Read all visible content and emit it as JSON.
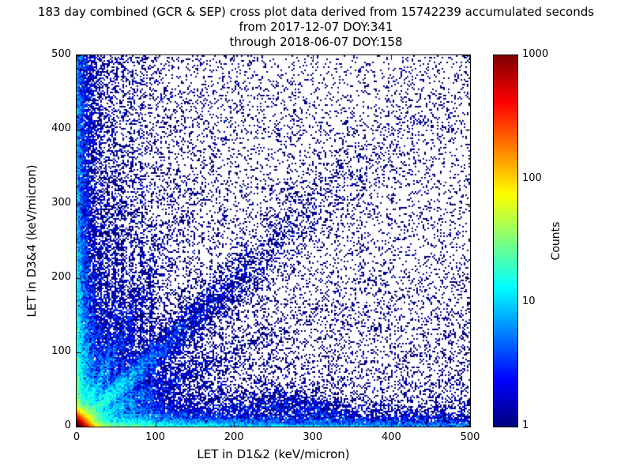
{
  "title": {
    "line1": "183 day combined (GCR & SEP) cross plot data derived from 15742239 accumulated seconds",
    "line2": "from 2017-12-07 DOY:341",
    "line3": "through 2018-06-07 DOY:158"
  },
  "period": {
    "days": "183",
    "accumulated_seconds": "15742239",
    "start": "2017-12-07 DOY:341",
    "end": "2018-06-07 DOY:158"
  },
  "chart_data": {
    "type": "heatmap",
    "title": "183 day combined (GCR & SEP) cross plot data derived from 15742239 accumulated seconds",
    "xlabel": "LET in D1&2 (keV/micron)",
    "ylabel": "LET in D3&4 (keV/micron)",
    "xlim": [
      0,
      500
    ],
    "ylim": [
      0,
      500
    ],
    "x_ticks": [
      0,
      100,
      200,
      300,
      400,
      500
    ],
    "y_ticks": [
      0,
      100,
      200,
      300,
      400,
      500
    ],
    "grid": false,
    "colorbar": {
      "label": "Counts",
      "scale": "log",
      "min": 1,
      "max": 1000,
      "ticks": [
        1,
        10,
        100,
        1000
      ],
      "colormap": "jet"
    },
    "description": "2D histogram (cross plot) of coincident LET in detectors D1&2 vs D3&4. Very hot (red/orange, ~1000 counts) core at the origin fading through yellow/green/cyan to a blue haze in the lower-left; a speckled blue correlation band along y~x out to ~(400,400); bright cyan/green stripes hugging the left and bottom axes; faint vertical streaks at low D1&2 LET (~15-95 keV/micron) reaching up to ~400; sparse single-count dark-blue speckle over the whole plane; small blue clumps near (255,22) and (310,14).",
    "density_model": [
      {
        "kind": "biexp",
        "n": 30000,
        "xscale": 6,
        "yscale": 6
      },
      {
        "kind": "biexp",
        "n": 12000,
        "xscale": 55,
        "yscale": 55
      },
      {
        "kind": "xexp_yuni",
        "n": 5000,
        "xscale": 8
      },
      {
        "kind": "biexp",
        "n": 6000,
        "xscale": 7,
        "yscale": 170
      },
      {
        "kind": "xuni_yexp",
        "n": 5000,
        "yscale": 8
      },
      {
        "kind": "biexp",
        "n": 6000,
        "xscale": 170,
        "yscale": 7
      },
      {
        "kind": "xexp_yuni",
        "n": 4000,
        "xscale": 75
      },
      {
        "kind": "xuni_yexp",
        "n": 4000,
        "yscale": 130
      },
      {
        "kind": "uniform",
        "n": 7500
      },
      {
        "kind": "diagonal",
        "n": 7000,
        "scale": 115,
        "slope": 0.97,
        "spread0": 3,
        "spreadk": 0.06
      },
      {
        "kind": "diagonal",
        "n": 1500,
        "scale": 75,
        "slope": 0.5,
        "spread0": 2,
        "spreadk": 0.03
      },
      {
        "kind": "diagonal",
        "n": 1500,
        "scale": 40,
        "slope": 2.1,
        "spread0": 2,
        "spreadk": 0.06
      },
      {
        "kind": "streak",
        "x": 14,
        "n": 500,
        "yscale": 160,
        "sigma": 1.2
      },
      {
        "kind": "streak",
        "x": 22,
        "n": 450,
        "yscale": 150,
        "sigma": 1.2
      },
      {
        "kind": "streak",
        "x": 31,
        "n": 520,
        "yscale": 175,
        "sigma": 1.3
      },
      {
        "kind": "streak",
        "x": 40,
        "n": 460,
        "yscale": 160,
        "sigma": 1.3
      },
      {
        "kind": "streak",
        "x": 49,
        "n": 520,
        "yscale": 185,
        "sigma": 1.4
      },
      {
        "kind": "streak",
        "x": 58,
        "n": 450,
        "yscale": 170,
        "sigma": 1.4
      },
      {
        "kind": "streak",
        "x": 70,
        "n": 420,
        "yscale": 160,
        "sigma": 1.5
      },
      {
        "kind": "streak",
        "x": 83,
        "n": 360,
        "yscale": 150,
        "sigma": 1.5
      },
      {
        "kind": "streak",
        "x": 95,
        "n": 320,
        "yscale": 140,
        "sigma": 1.5
      },
      {
        "kind": "cluster",
        "cx": 255,
        "cy": 22,
        "sx": 35,
        "sy": 15,
        "n": 600
      },
      {
        "kind": "cluster",
        "cx": 310,
        "cy": 14,
        "sx": 25,
        "sy": 10,
        "n": 300
      }
    ]
  },
  "colors": {
    "background": "#ffffff",
    "frame": "#000000",
    "single_count_point": "#00007f",
    "max_count": "#7f0000"
  }
}
